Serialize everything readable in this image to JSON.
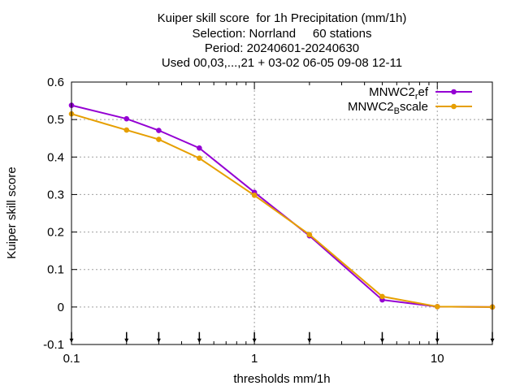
{
  "chart_data": {
    "type": "line",
    "title_lines": [
      "Kuiper skill score  for 1h Precipitation (mm/1h)",
      "Selection: Norrland     60 stations",
      "Period: 20240601-20240630",
      "Used 00,03,...,21 + 03-02 06-05 09-08 12-11"
    ],
    "xlabel": "thresholds mm/1h",
    "ylabel": "Kuiper skill score",
    "x_scale": "log",
    "xlim": [
      0.1,
      20
    ],
    "ylim": [
      -0.1,
      0.6
    ],
    "x_ticks": [
      {
        "value": 0.1,
        "label": "0.1"
      },
      {
        "value": 1,
        "label": "1"
      },
      {
        "value": 10,
        "label": "10"
      }
    ],
    "y_ticks": [
      {
        "value": -0.1,
        "label": "-0.1"
      },
      {
        "value": 0,
        "label": "0"
      },
      {
        "value": 0.1,
        "label": "0.1"
      },
      {
        "value": 0.2,
        "label": "0.2"
      },
      {
        "value": 0.3,
        "label": "0.3"
      },
      {
        "value": 0.4,
        "label": "0.4"
      },
      {
        "value": 0.5,
        "label": "0.5"
      },
      {
        "value": 0.6,
        "label": "0.6"
      }
    ],
    "grid": true,
    "legend_position": "top-right",
    "threshold_markers": [
      0.1,
      0.2,
      0.3,
      0.5,
      1,
      2,
      5,
      10,
      20
    ],
    "x": [
      0.1,
      0.2,
      0.3,
      0.5,
      1,
      2,
      5,
      10,
      20
    ],
    "series": [
      {
        "name": "MNWC2_ref",
        "legend_main": "MNWC2",
        "legend_sub": "r",
        "legend_tail": "ef",
        "color": "#9400d3",
        "values": [
          0.538,
          0.502,
          0.471,
          0.424,
          0.306,
          0.19,
          0.019,
          0.001,
          0.0
        ]
      },
      {
        "name": "MNWC2_Bscale",
        "legend_main": "MNWC2",
        "legend_sub": "B",
        "legend_tail": "scale",
        "color": "#e69f00",
        "values": [
          0.515,
          0.472,
          0.447,
          0.397,
          0.298,
          0.193,
          0.028,
          0.001,
          0.0
        ]
      }
    ]
  }
}
